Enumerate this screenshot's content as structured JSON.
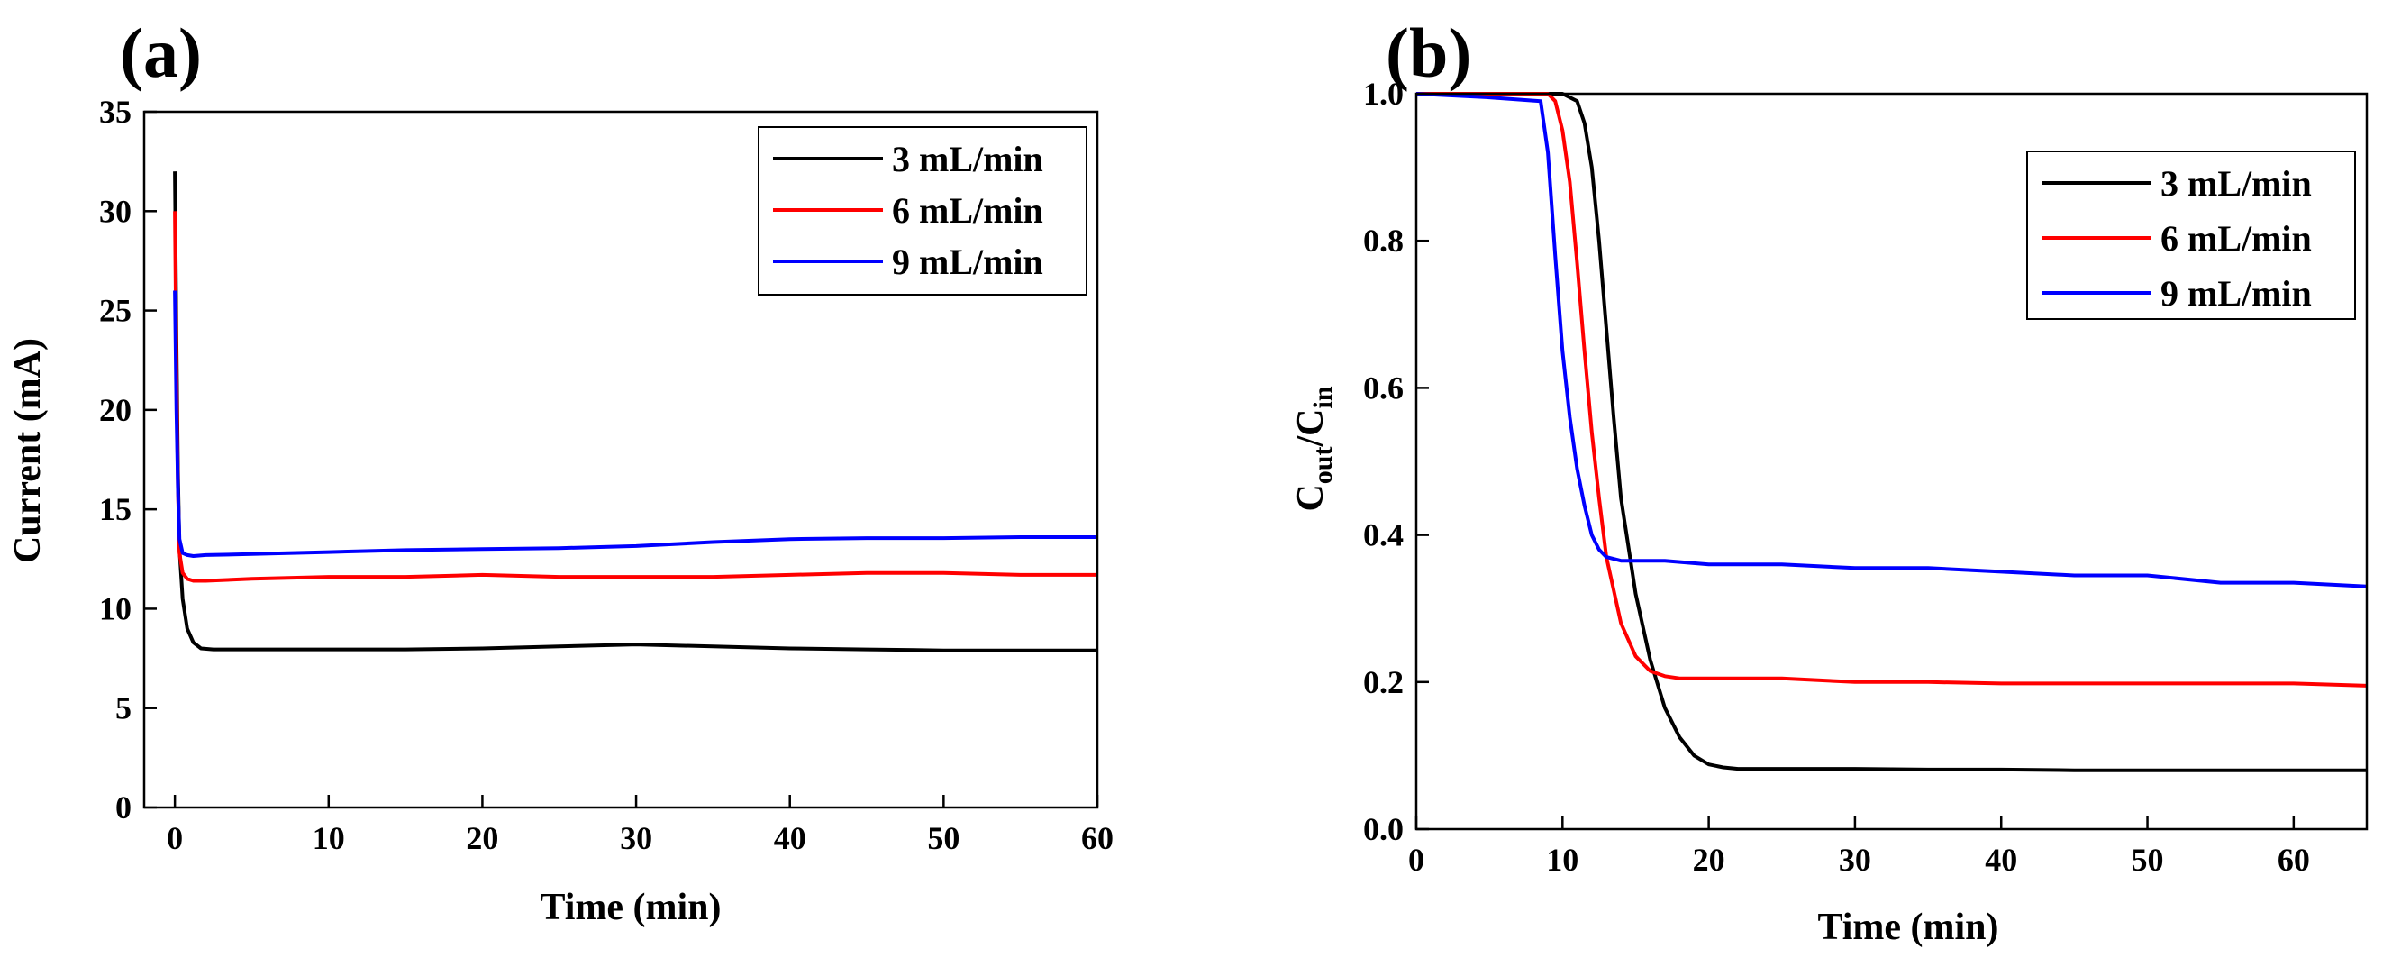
{
  "chart_data": [
    {
      "panel_label": "(a)",
      "type": "line",
      "xlabel": "Time (min)",
      "ylabel": "Current (mA)",
      "xlim": [
        -2,
        60
      ],
      "ylim": [
        0,
        35
      ],
      "xticks": [
        0,
        10,
        20,
        30,
        40,
        50,
        60
      ],
      "yticks": [
        0,
        5,
        10,
        15,
        20,
        25,
        30,
        35
      ],
      "grid": false,
      "legend_position": "top-right",
      "series": [
        {
          "name": "3 mL/min",
          "color": "#000000",
          "x": [
            0,
            0.1,
            0.2,
            0.3,
            0.5,
            0.8,
            1.2,
            1.7,
            2.5,
            5,
            10,
            15,
            20,
            25,
            30,
            35,
            40,
            45,
            50,
            55,
            60
          ],
          "y": [
            32,
            24,
            17,
            13,
            10.5,
            9.0,
            8.3,
            8.0,
            7.95,
            7.95,
            7.95,
            7.95,
            8.0,
            8.1,
            8.2,
            8.1,
            8.0,
            7.95,
            7.9,
            7.9,
            7.9
          ]
        },
        {
          "name": "6 mL/min",
          "color": "#ff0000",
          "x": [
            0,
            0.1,
            0.2,
            0.3,
            0.5,
            0.8,
            1.2,
            2,
            5,
            10,
            15,
            20,
            25,
            30,
            35,
            40,
            45,
            50,
            55,
            60
          ],
          "y": [
            30,
            22,
            16,
            12.8,
            11.8,
            11.5,
            11.4,
            11.4,
            11.5,
            11.6,
            11.6,
            11.7,
            11.6,
            11.6,
            11.6,
            11.7,
            11.8,
            11.8,
            11.7,
            11.7
          ]
        },
        {
          "name": "9 mL/min",
          "color": "#0000ff",
          "x": [
            0,
            0.1,
            0.2,
            0.3,
            0.5,
            0.8,
            1.2,
            2,
            5,
            10,
            15,
            20,
            25,
            30,
            35,
            40,
            45,
            50,
            55,
            60
          ],
          "y": [
            26,
            20,
            16,
            13.5,
            12.8,
            12.7,
            12.65,
            12.7,
            12.75,
            12.85,
            12.95,
            13.0,
            13.05,
            13.15,
            13.35,
            13.5,
            13.55,
            13.55,
            13.6,
            13.6
          ]
        }
      ]
    },
    {
      "panel_label": "(b)",
      "type": "line",
      "xlabel": "Time (min)",
      "ylabel_main": "C",
      "ylabel_sub1": "out",
      "ylabel_mid": "/C",
      "ylabel_sub2": "in",
      "xlim": [
        0,
        65
      ],
      "ylim": [
        0.0,
        1.0
      ],
      "xticks": [
        0,
        10,
        20,
        30,
        40,
        50,
        60
      ],
      "yticks": [
        "0.0",
        "0.2",
        "0.4",
        "0.6",
        "0.8",
        "1.0"
      ],
      "grid": false,
      "legend_position": "top-right",
      "series": [
        {
          "name": "3 mL/min",
          "color": "#000000",
          "x": [
            0,
            5,
            10,
            11,
            11.5,
            12,
            12.5,
            13,
            13.5,
            14,
            15,
            16,
            17,
            18,
            19,
            20,
            21,
            22,
            25,
            30,
            35,
            40,
            45,
            50,
            55,
            60,
            65
          ],
          "y": [
            1.0,
            1.0,
            1.0,
            0.99,
            0.96,
            0.9,
            0.8,
            0.68,
            0.56,
            0.45,
            0.32,
            0.23,
            0.165,
            0.125,
            0.1,
            0.088,
            0.084,
            0.082,
            0.082,
            0.082,
            0.081,
            0.081,
            0.08,
            0.08,
            0.08,
            0.08,
            0.08
          ]
        },
        {
          "name": "6 mL/min",
          "color": "#ff0000",
          "x": [
            0,
            5,
            9,
            9.5,
            10,
            10.5,
            11,
            11.5,
            12,
            12.5,
            13,
            14,
            15,
            16,
            17,
            18,
            20,
            25,
            30,
            35,
            40,
            45,
            50,
            55,
            60,
            65
          ],
          "y": [
            1.0,
            1.0,
            1.0,
            0.99,
            0.95,
            0.88,
            0.77,
            0.65,
            0.54,
            0.45,
            0.37,
            0.28,
            0.235,
            0.215,
            0.208,
            0.205,
            0.205,
            0.205,
            0.2,
            0.2,
            0.198,
            0.198,
            0.198,
            0.198,
            0.198,
            0.195
          ]
        },
        {
          "name": "9 mL/min",
          "color": "#0000ff",
          "x": [
            0,
            5,
            8.5,
            9,
            9.5,
            10,
            10.5,
            11,
            11.5,
            12,
            12.5,
            13,
            14,
            15,
            17,
            20,
            25,
            30,
            35,
            40,
            45,
            50,
            55,
            60,
            65
          ],
          "y": [
            1.0,
            0.995,
            0.99,
            0.92,
            0.78,
            0.65,
            0.56,
            0.49,
            0.44,
            0.4,
            0.38,
            0.37,
            0.365,
            0.365,
            0.365,
            0.36,
            0.36,
            0.355,
            0.355,
            0.35,
            0.345,
            0.345,
            0.335,
            0.335,
            0.33
          ]
        }
      ]
    }
  ]
}
